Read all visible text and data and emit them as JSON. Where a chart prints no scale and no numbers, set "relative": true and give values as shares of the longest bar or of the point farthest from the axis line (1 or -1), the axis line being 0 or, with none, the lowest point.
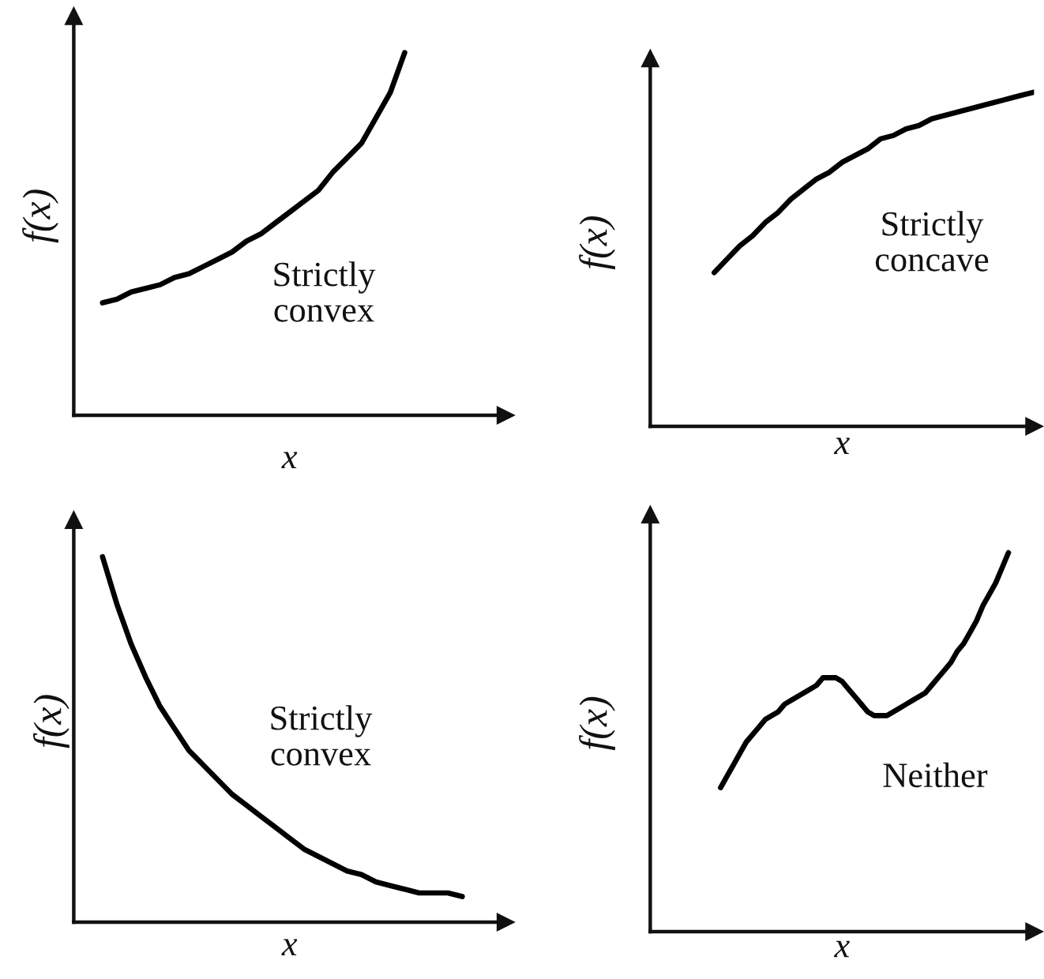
{
  "chart_data": [
    {
      "type": "line",
      "xlabel": "x",
      "ylabel": "f(x)",
      "annotations": [
        "Strictly\nconvex"
      ],
      "relative": true,
      "color": "#000000",
      "categories": [
        null,
        null,
        null,
        null,
        null,
        null,
        null,
        null,
        null,
        null,
        null,
        null,
        null,
        null,
        null,
        null,
        null,
        null,
        null,
        null,
        null,
        null,
        null,
        null,
        null,
        null,
        null,
        null,
        null,
        null,
        null
      ],
      "values": [
        null,
        null,
        0.31,
        0.32,
        0.34,
        0.35,
        0.36,
        0.38,
        0.39,
        0.41,
        0.43,
        0.45,
        0.48,
        0.5,
        0.53,
        0.56,
        0.59,
        0.62,
        0.67,
        0.71,
        0.75,
        0.82,
        0.89,
        1.0,
        null,
        null,
        null,
        null,
        null,
        null,
        null
      ]
    },
    {
      "type": "line",
      "xlabel": "x",
      "ylabel": "f(x)",
      "annotations": [
        "Strictly\nconcave"
      ],
      "relative": true,
      "color": "#000000",
      "categories": [
        null,
        null,
        null,
        null,
        null,
        null,
        null,
        null,
        null,
        null,
        null,
        null,
        null,
        null,
        null,
        null,
        null,
        null,
        null,
        null,
        null,
        null,
        null,
        null,
        null,
        null,
        null,
        null,
        null,
        null,
        null
      ],
      "values": [
        null,
        null,
        null,
        null,
        null,
        0.46,
        0.5,
        0.54,
        0.57,
        0.61,
        0.64,
        0.68,
        0.71,
        0.74,
        0.76,
        0.79,
        0.81,
        0.83,
        0.86,
        0.87,
        0.89,
        0.9,
        0.92,
        0.93,
        0.94,
        0.95,
        0.96,
        0.97,
        0.98,
        0.99,
        1.0
      ]
    },
    {
      "type": "line",
      "xlabel": "x",
      "ylabel": "f(x)",
      "annotations": [
        "Strictly\nconvex"
      ],
      "relative": true,
      "color": "#000000",
      "categories": [
        null,
        null,
        null,
        null,
        null,
        null,
        null,
        null,
        null,
        null,
        null,
        null,
        null,
        null,
        null,
        null,
        null,
        null,
        null,
        null,
        null,
        null,
        null,
        null,
        null,
        null,
        null,
        null,
        null,
        null,
        null
      ],
      "values": [
        null,
        null,
        1.0,
        0.87,
        0.76,
        0.67,
        0.59,
        0.53,
        0.47,
        0.43,
        0.39,
        0.35,
        0.32,
        0.29,
        0.26,
        0.23,
        0.2,
        0.18,
        0.16,
        0.14,
        0.13,
        0.11,
        0.1,
        0.09,
        0.08,
        0.08,
        0.08,
        0.07,
        null,
        null,
        null
      ]
    },
    {
      "type": "line",
      "xlabel": "x",
      "ylabel": "f(x)",
      "annotations": [
        "Neither"
      ],
      "relative": true,
      "color": "#000000",
      "categories": [
        null,
        null,
        null,
        null,
        null,
        null,
        null,
        null,
        null,
        null,
        null,
        null,
        null,
        null,
        null,
        null,
        null,
        null,
        null,
        null,
        null,
        null,
        null,
        null,
        null,
        null,
        null,
        null,
        null,
        null,
        null,
        null,
        null,
        null,
        null,
        null,
        null,
        null,
        null,
        null,
        null,
        null,
        null,
        null,
        null,
        null,
        null,
        null,
        null,
        null,
        null,
        null,
        null,
        null,
        null,
        null,
        null,
        null,
        null,
        null,
        null
      ],
      "values": [
        null,
        null,
        null,
        null,
        null,
        null,
        null,
        null,
        null,
        null,
        null,
        0.38,
        0.41,
        0.44,
        0.47,
        0.5,
        0.52,
        0.54,
        0.56,
        0.57,
        0.58,
        0.6,
        0.61,
        0.62,
        0.63,
        0.64,
        0.65,
        0.67,
        0.67,
        0.67,
        0.66,
        0.64,
        0.62,
        0.6,
        0.58,
        0.57,
        0.57,
        0.57,
        0.58,
        0.59,
        0.6,
        0.61,
        0.62,
        0.63,
        0.65,
        0.67,
        0.69,
        0.71,
        0.74,
        0.76,
        0.79,
        0.82,
        0.86,
        0.89,
        0.92,
        0.96,
        1.0,
        null,
        null,
        null,
        null
      ]
    }
  ]
}
